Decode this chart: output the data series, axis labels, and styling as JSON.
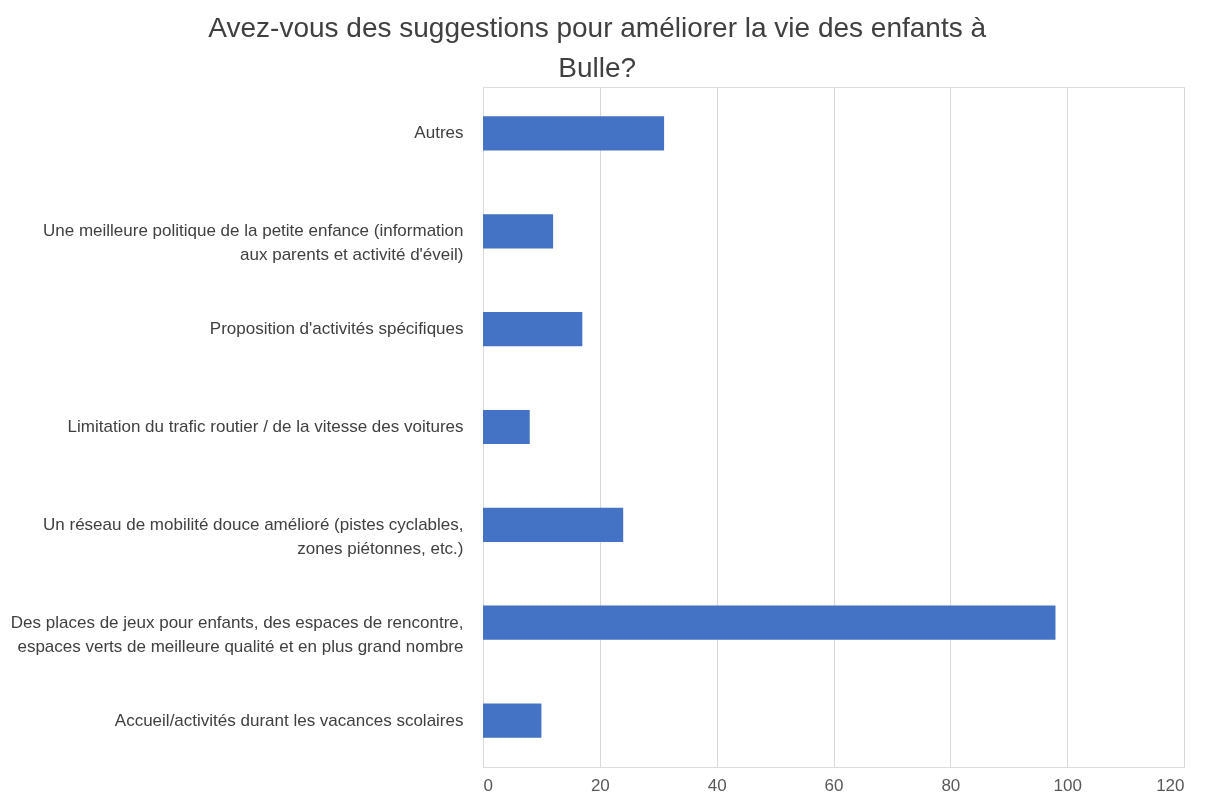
{
  "chart_data": {
    "type": "bar",
    "orientation": "horizontal",
    "title": "Avez-vous des suggestions pour améliorer la vie des enfants à Bulle?",
    "categories": [
      "Autres",
      "Une meilleure politique de la petite enfance (information aux parents et activité d'éveil)",
      "Proposition d'activités spécifiques",
      "Limitation du trafic routier / de la vitesse des voitures",
      "Un réseau de mobilité douce amélioré (pistes cyclables, zones piétonnes, etc.)",
      "Des places de jeux pour enfants, des espaces de rencontre, espaces verts de meilleure qualité et en plus grand nombre",
      "Accueil/activités durant les vacances scolaires"
    ],
    "values": [
      31,
      12,
      17,
      8,
      24,
      98,
      10
    ],
    "color": "#4472c4",
    "xlim": [
      0,
      120
    ],
    "xticks": [
      0,
      20,
      40,
      60,
      80,
      100,
      120
    ],
    "grid": "x"
  }
}
